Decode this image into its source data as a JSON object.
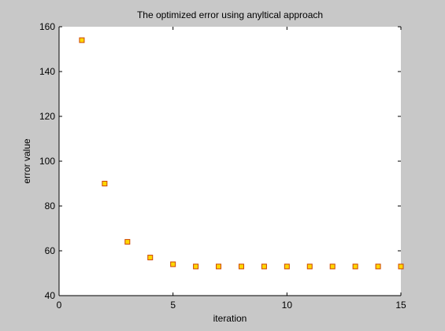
{
  "chart_data": {
    "type": "scatter",
    "title": "The optimized error using anyltical approach",
    "xlabel": "iteration",
    "ylabel": "error value",
    "xlim": [
      0,
      15
    ],
    "ylim": [
      40,
      160
    ],
    "xticks": [
      0,
      5,
      10,
      15
    ],
    "yticks": [
      40,
      60,
      80,
      100,
      120,
      140,
      160
    ],
    "grid": false,
    "marker": "square",
    "marker_fill": "#ffd700",
    "marker_edge": "#cc4400",
    "series": [
      {
        "x": [
          1,
          2,
          3,
          4,
          5,
          6,
          7,
          8,
          9,
          10,
          11,
          12,
          13,
          14,
          15
        ],
        "y": [
          154,
          90,
          64,
          57,
          54,
          53,
          53,
          53,
          53,
          53,
          53,
          53,
          53,
          53,
          53
        ]
      }
    ]
  }
}
